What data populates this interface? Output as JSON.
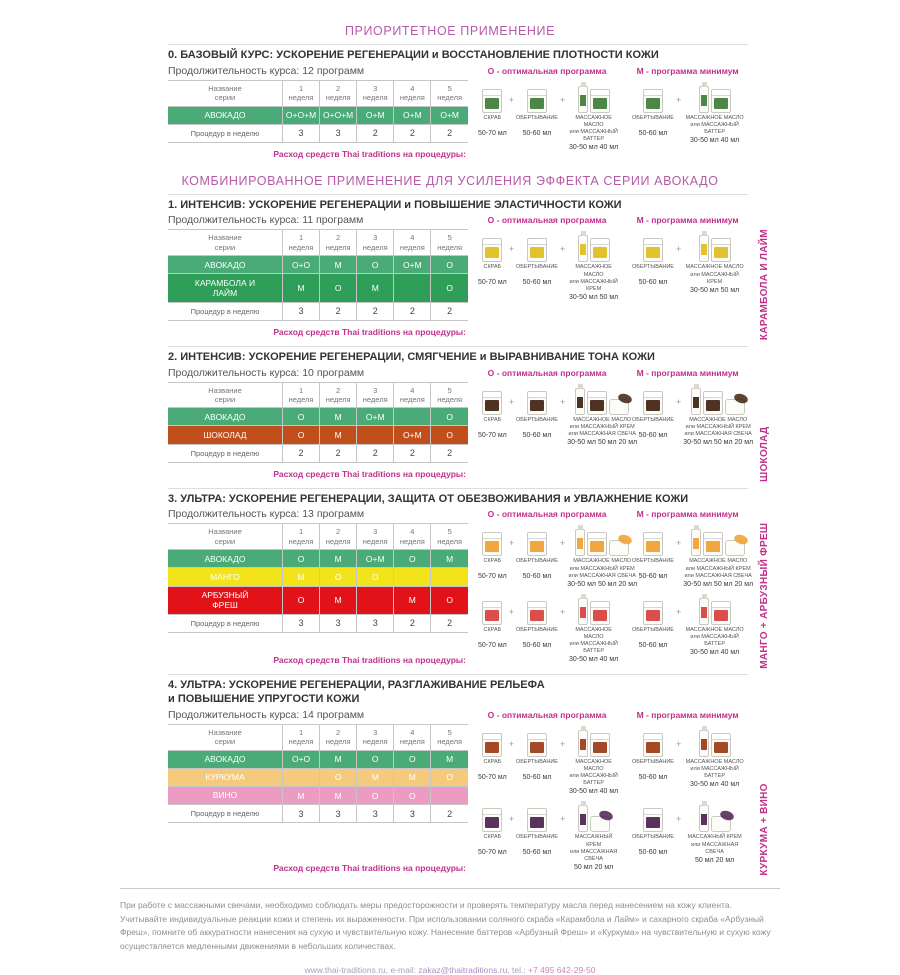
{
  "page": {
    "top_title": "ПРИОРИТЕТНОЕ ПРИМЕНЕНИЕ",
    "combined_title": "КОМБИНИРОВАННОЕ ПРИМЕНЕНИЕ ДЛЯ УСИЛЕНИЯ ЭФФЕКТА СЕРИИ АВОКАДО",
    "legend_optimal": "О - оптимальная программа",
    "legend_minimum": "М - программа минимум",
    "consumption_label": "Расход средств Thai traditions  на процедуры:",
    "plus": "+",
    "footnote": "При работе с массажными свечами, необходимо соблюдать меры предосторожности и проверять температуру масла перед нанесением на кожу клиента. Учитывайте индивидуальные реакции кожи и степень их выраженности. При использовании соляного скраба «Карамбола и Лайм» и сахарного скраба «Арбузный Фреш», помните об аккуратности нанесения на сухую и чувствительную кожу. Нанесение баттеров «Арбузный Фреш» и «Куркума» на чувствительную и сухую кожу осуществляется медленными движениями в небольших количествах.",
    "footer": {
      "prefix": "www.thai-traditions.ru, e-mail: ",
      "email": "zakaz@thaitraditions.ru",
      "middle": ", tel.: ",
      "phone": "+7 495 642-29-50"
    }
  },
  "table_header": {
    "series": "Название\nсерии",
    "weeks": [
      "1\nнеделя",
      "2\nнеделя",
      "3\nнеделя",
      "4\nнеделя",
      "5\nнеделя"
    ],
    "procedures": "Процедур в неделю"
  },
  "sections": [
    {
      "title": "0. БАЗОВЫЙ КУРС: УСКОРЕНИЕ РЕГЕНЕРАЦИИ и ВОССТАНОВЛЕНИЕ ПЛОТНОСТИ КОЖИ",
      "duration": "Продолжительность курса: 12 программ",
      "side_label": "",
      "rows": [
        {
          "name": "АВОКАДО",
          "color": "#4aab78",
          "text": "#ffffff",
          "cells": [
            "О+О+М",
            "О+О+М",
            "О+М",
            "О+М",
            "О+М"
          ]
        }
      ],
      "procedures": [
        "3",
        "3",
        "2",
        "2",
        "2"
      ],
      "product_rows": [
        {
          "color": "#3e7d38",
          "groups": [
            {
              "items": [
                {
                  "icons": [
                    "jar"
                  ],
                  "name": "СКРАБ",
                  "vol": "50-70 мл"
                },
                {
                  "plus": true
                },
                {
                  "icons": [
                    "jar"
                  ],
                  "name": "ОБЕРТЫВАНИЕ",
                  "vol": "50-60 мл"
                },
                {
                  "plus": true
                },
                {
                  "icons": [
                    "bottle",
                    "jar"
                  ],
                  "name": "МАССАЖНОЕ МАСЛО\nили МАССАЖНЫЙ БАТТЕР",
                  "vol": "30-50 мл  40 мл"
                }
              ]
            },
            {
              "items": [
                {
                  "icons": [
                    "jar"
                  ],
                  "name": "ОБЕРТЫВАНИЕ",
                  "vol": "50-60 мл"
                },
                {
                  "plus": true
                },
                {
                  "icons": [
                    "bottle",
                    "jar"
                  ],
                  "name": "МАССАЖНОЕ МАСЛО\nили МАССАЖНЫЙ БАТТЕР",
                  "vol": "30-50 мл  40 мл"
                }
              ]
            }
          ]
        }
      ]
    },
    {
      "title": "1. ИНТЕНСИВ: УСКОРЕНИЕ РЕГЕНЕРАЦИИ и ПОВЫШЕНИЕ ЭЛАСТИЧНОСТИ КОЖИ",
      "duration": "Продолжительность курса: 11 программ",
      "side_label": "КАРАМБОЛА И ЛАЙМ",
      "rows": [
        {
          "name": "АВОКАДО",
          "color": "#4aab78",
          "text": "#ffffff",
          "cells": [
            "О+О",
            "М",
            "О",
            "О+М",
            "О"
          ]
        },
        {
          "name": "КАРАМБОЛА И\nЛАЙМ",
          "color": "#2f9e58",
          "text": "#ffffff",
          "cells": [
            "М",
            "О",
            "М",
            "",
            "О"
          ]
        }
      ],
      "procedures": [
        "3",
        "2",
        "2",
        "2",
        "2"
      ],
      "product_rows": [
        {
          "color": "#e0bd1d",
          "groups": [
            {
              "items": [
                {
                  "icons": [
                    "jar"
                  ],
                  "name": "СКРАБ",
                  "vol": "50-70 мл"
                },
                {
                  "plus": true
                },
                {
                  "icons": [
                    "jar"
                  ],
                  "name": "ОБЕРТЫВАНИЕ",
                  "vol": "50-60 мл"
                },
                {
                  "plus": true
                },
                {
                  "icons": [
                    "bottle",
                    "jar"
                  ],
                  "name": "МАССАЖНОЕ МАСЛО\nили МАССАЖНЫЙ КРЕМ",
                  "vol": "30-50 мл  50 мл"
                }
              ]
            },
            {
              "items": [
                {
                  "icons": [
                    "jar"
                  ],
                  "name": "ОБЕРТЫВАНИЕ",
                  "vol": "50-60 мл"
                },
                {
                  "plus": true
                },
                {
                  "icons": [
                    "bottle",
                    "jar"
                  ],
                  "name": "МАССАЖНОЕ МАСЛО\nили МАССАЖНЫЙ КРЕМ",
                  "vol": "30-50 мл  50 мл"
                }
              ]
            }
          ]
        }
      ]
    },
    {
      "title": "2. ИНТЕНСИВ: УСКОРЕНИЕ РЕГЕНЕРАЦИИ, СМЯГЧЕНИЕ и ВЫРАВНИВАНИЕ ТОНА КОЖИ",
      "duration": "Продолжительность курса: 10 программ",
      "side_label": "ШОКОЛАД",
      "rows": [
        {
          "name": "АВОКАДО",
          "color": "#4aab78",
          "text": "#ffffff",
          "cells": [
            "О",
            "М",
            "О+М",
            "",
            "О"
          ]
        },
        {
          "name": "ШОКОЛАД",
          "color": "#c14f1b",
          "text": "#ffffff",
          "cells": [
            "О",
            "М",
            "",
            "О+М",
            "О"
          ]
        }
      ],
      "procedures": [
        "2",
        "2",
        "2",
        "2",
        "2"
      ],
      "product_rows": [
        {
          "color": "#40220f",
          "groups": [
            {
              "items": [
                {
                  "icons": [
                    "jar"
                  ],
                  "name": "СКРАБ",
                  "vol": "50-70 мл"
                },
                {
                  "plus": true
                },
                {
                  "icons": [
                    "jar"
                  ],
                  "name": "ОБЕРТЫВАНИЕ",
                  "vol": "50-60 мл"
                },
                {
                  "plus": true
                },
                {
                  "icons": [
                    "bottle",
                    "jar",
                    "candle"
                  ],
                  "name": "МАССАЖНОЕ МАСЛО\nили МАССАЖНЫЙ КРЕМ\nили МАССАЖНАЯ СВЕЧА",
                  "vol": "30-50 мл 50 мл 20 мл"
                }
              ]
            },
            {
              "items": [
                {
                  "icons": [
                    "jar"
                  ],
                  "name": "ОБЕРТЫВАНИЕ",
                  "vol": "50-60 мл"
                },
                {
                  "plus": true
                },
                {
                  "icons": [
                    "bottle",
                    "jar",
                    "candle"
                  ],
                  "name": "МАССАЖНОЕ МАСЛО\nили МАССАЖНЫЙ КРЕМ\nили МАССАЖНАЯ СВЕЧА",
                  "vol": "30-50 мл 50 мл 20 мл"
                }
              ]
            }
          ]
        }
      ]
    },
    {
      "title": "3. УЛЬТРА: УСКОРЕНИЕ РЕГЕНЕРАЦИИ, ЗАЩИТА ОТ ОБЕЗВОЖИВАНИЯ и УВЛАЖНЕНИЕ КОЖИ",
      "duration": "Продолжительность курса: 13 программ",
      "side_label": "МАНГО + АРБУЗНЫЙ ФРЕШ",
      "rows": [
        {
          "name": "АВОКАДО",
          "color": "#4aab78",
          "text": "#ffffff",
          "cells": [
            "О",
            "М",
            "О+М",
            "О",
            "М"
          ]
        },
        {
          "name": "МАНГО",
          "color": "#f2e31a",
          "text": "#ffffff",
          "cells": [
            "М",
            "О",
            "О",
            "",
            ""
          ]
        },
        {
          "name": "АРБУЗНЫЙ\nФРЕШ",
          "color": "#e21219",
          "text": "#9c1013",
          "cells": [
            "О",
            "М",
            "",
            "М",
            "О"
          ]
        }
      ],
      "procedures": [
        "3",
        "3",
        "3",
        "2",
        "2"
      ],
      "product_rows": [
        {
          "color": "#ef9f2f",
          "groups": [
            {
              "items": [
                {
                  "icons": [
                    "jar"
                  ],
                  "name": "СКРАБ",
                  "vol": "50-70 мл"
                },
                {
                  "plus": true
                },
                {
                  "icons": [
                    "jar"
                  ],
                  "name": "ОБЕРТЫВАНИЕ",
                  "vol": "50-60 мл"
                },
                {
                  "plus": true
                },
                {
                  "icons": [
                    "bottle",
                    "jar",
                    "candle"
                  ],
                  "name": "МАССАЖНОЕ МАСЛО\nили МАССАЖНЫЙ КРЕМ\nили МАССАЖНАЯ СВЕЧА",
                  "vol": "30-50 мл 50 мл 20 мл"
                }
              ]
            },
            {
              "items": [
                {
                  "icons": [
                    "jar"
                  ],
                  "name": "ОБЕРТЫВАНИЕ",
                  "vol": "50-60 мл"
                },
                {
                  "plus": true
                },
                {
                  "icons": [
                    "bottle",
                    "jar",
                    "candle"
                  ],
                  "name": "МАССАЖНОЕ МАСЛО\nили МАССАЖНЫЙ КРЕМ\nили МАССАЖНАЯ СВЕЧА",
                  "vol": "30-50 мл 50 мл 20 мл"
                }
              ]
            }
          ]
        },
        {
          "color": "#d7403c",
          "groups": [
            {
              "items": [
                {
                  "icons": [
                    "jar"
                  ],
                  "name": "СКРАБ",
                  "vol": "50-70 мл"
                },
                {
                  "plus": true
                },
                {
                  "icons": [
                    "jar"
                  ],
                  "name": "ОБЕРТЫВАНИЕ",
                  "vol": "50-60 мл"
                },
                {
                  "plus": true
                },
                {
                  "icons": [
                    "bottle",
                    "jar"
                  ],
                  "name": "МАССАЖНОЕ МАСЛО\nили МАССАЖНЫЙ БАТТЕР",
                  "vol": "30-50 мл  40 мл"
                }
              ]
            },
            {
              "items": [
                {
                  "icons": [
                    "jar"
                  ],
                  "name": "ОБЕРТЫВАНИЕ",
                  "vol": "50-60 мл"
                },
                {
                  "plus": true
                },
                {
                  "icons": [
                    "bottle",
                    "jar"
                  ],
                  "name": "МАССАЖНОЕ МАСЛО\nили МАССАЖНЫЙ БАТТЕР",
                  "vol": "30-50 мл  40 мл"
                }
              ]
            }
          ]
        }
      ]
    },
    {
      "title": "4. УЛЬТРА: УСКОРЕНИЕ РЕГЕНЕРАЦИИ, РАЗГЛАЖИВАНИЕ РЕЛЬЕФА\nи ПОВЫШЕНИЕ УПРУГОСТИ КОЖИ",
      "duration": "Продолжительность курса: 14 программ",
      "side_label": "КУРКУМА + ВИНО",
      "rows": [
        {
          "name": "АВОКАДО",
          "color": "#4aab78",
          "text": "#ffffff",
          "cells": [
            "О+О",
            "М",
            "О",
            "О",
            "М"
          ]
        },
        {
          "name": "КУРКУМА",
          "color": "#f5ca7c",
          "text": "#ffffff",
          "cells": [
            "",
            "О",
            "М",
            "М",
            "О"
          ]
        },
        {
          "name": "ВИНО",
          "color": "#ec9cc3",
          "text": "#ffffff",
          "cells": [
            "М",
            "М",
            "О",
            "О",
            ""
          ]
        }
      ],
      "procedures": [
        "3",
        "3",
        "3",
        "3",
        "2"
      ],
      "product_rows": [
        {
          "color": "#9c3a12",
          "groups": [
            {
              "items": [
                {
                  "icons": [
                    "jar"
                  ],
                  "name": "СКРАБ",
                  "vol": "50-70 мл"
                },
                {
                  "plus": true
                },
                {
                  "icons": [
                    "jar"
                  ],
                  "name": "ОБЕРТЫВАНИЕ",
                  "vol": "50-60 мл"
                },
                {
                  "plus": true
                },
                {
                  "icons": [
                    "bottle",
                    "jar"
                  ],
                  "name": "МАССАЖНОЕ МАСЛО\nили МАССАЖНЫЙ БАТТЕР",
                  "vol": "30-50 мл  40 мл"
                }
              ]
            },
            {
              "items": [
                {
                  "icons": [
                    "jar"
                  ],
                  "name": "ОБЕРТЫВАНИЕ",
                  "vol": "50-60 мл"
                },
                {
                  "plus": true
                },
                {
                  "icons": [
                    "bottle",
                    "jar"
                  ],
                  "name": "МАССАЖНОЕ МАСЛО\nили МАССАЖНЫЙ БАТТЕР",
                  "vol": "30-50 мл  40 мл"
                }
              ]
            }
          ]
        },
        {
          "color": "#4c2150",
          "groups": [
            {
              "items": [
                {
                  "icons": [
                    "jar"
                  ],
                  "name": "СКРАБ",
                  "vol": "50-70 мл"
                },
                {
                  "plus": true
                },
                {
                  "icons": [
                    "jar"
                  ],
                  "name": "ОБЕРТЫВАНИЕ",
                  "vol": "50-60 мл"
                },
                {
                  "plus": true
                },
                {
                  "icons": [
                    "bottle",
                    "candle"
                  ],
                  "name": "МАССАЖНЫЙ КРЕМ\nили МАССАЖНАЯ СВЕЧА",
                  "vol": "50 мл  20 мл"
                }
              ]
            },
            {
              "items": [
                {
                  "icons": [
                    "jar"
                  ],
                  "name": "ОБЕРТЫВАНИЕ",
                  "vol": "50-60 мл"
                },
                {
                  "plus": true
                },
                {
                  "icons": [
                    "bottle",
                    "candle"
                  ],
                  "name": "МАССАЖНЫЙ КРЕМ\nили МАССАЖНАЯ СВЕЧА",
                  "vol": "50 мл  20 мл"
                }
              ]
            }
          ]
        }
      ]
    }
  ]
}
